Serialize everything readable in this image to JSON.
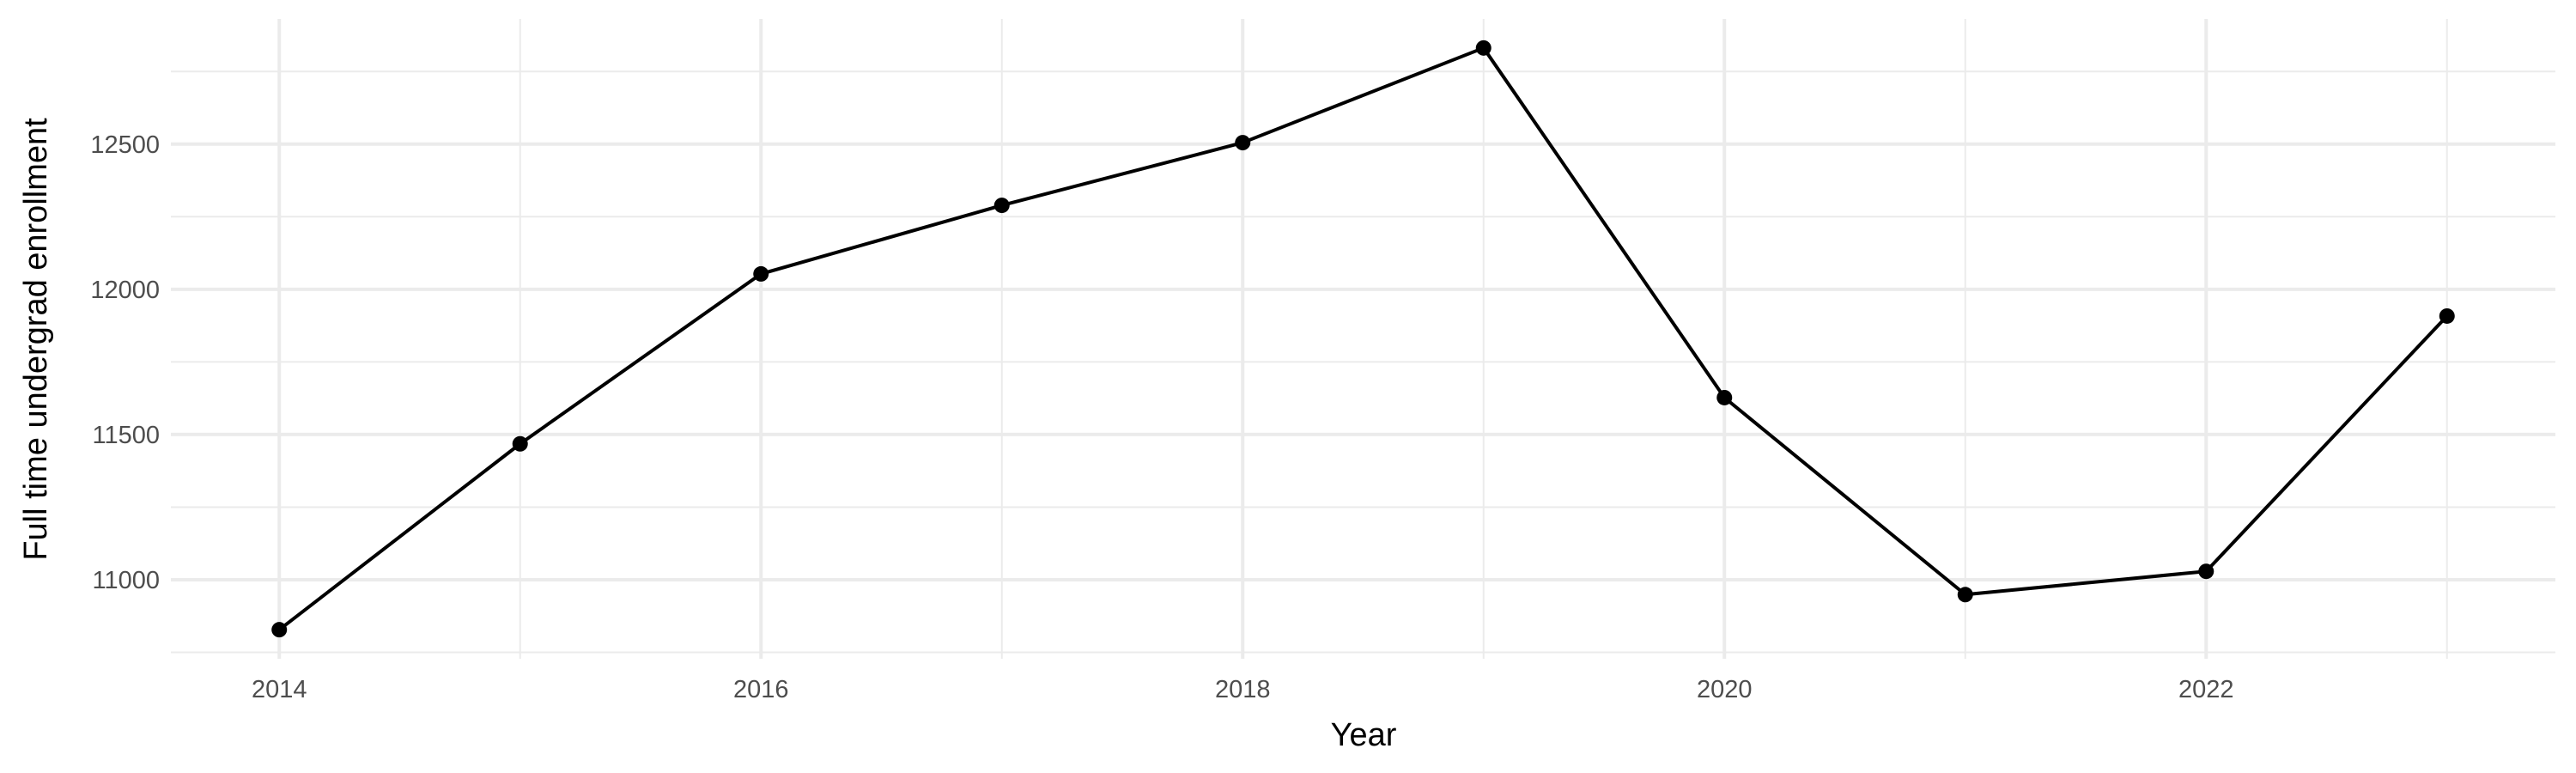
{
  "chart_data": {
    "type": "line",
    "title": "",
    "xlabel": "Year",
    "ylabel": "Full time undergrad enrollment",
    "x": [
      2014,
      2015,
      2016,
      2017,
      2018,
      2019,
      2020,
      2021,
      2022,
      2023
    ],
    "series": [
      {
        "values": [
          10828,
          11468,
          12053,
          12289,
          12505,
          12831,
          11627,
          10949,
          11029,
          11908
        ]
      }
    ],
    "xticks": [
      "2014",
      "2016",
      "2018",
      "2020",
      "2022"
    ],
    "yticks": [
      "11000",
      "11500",
      "12000",
      "12500"
    ],
    "xlim": [
      2013.55,
      2023.45
    ],
    "ylim": [
      10728,
      12931
    ],
    "grid": true,
    "legend": "none",
    "colors": {
      "line": "#000000",
      "grid": "#ebebeb",
      "tick_text": "#4d4d4d"
    }
  }
}
